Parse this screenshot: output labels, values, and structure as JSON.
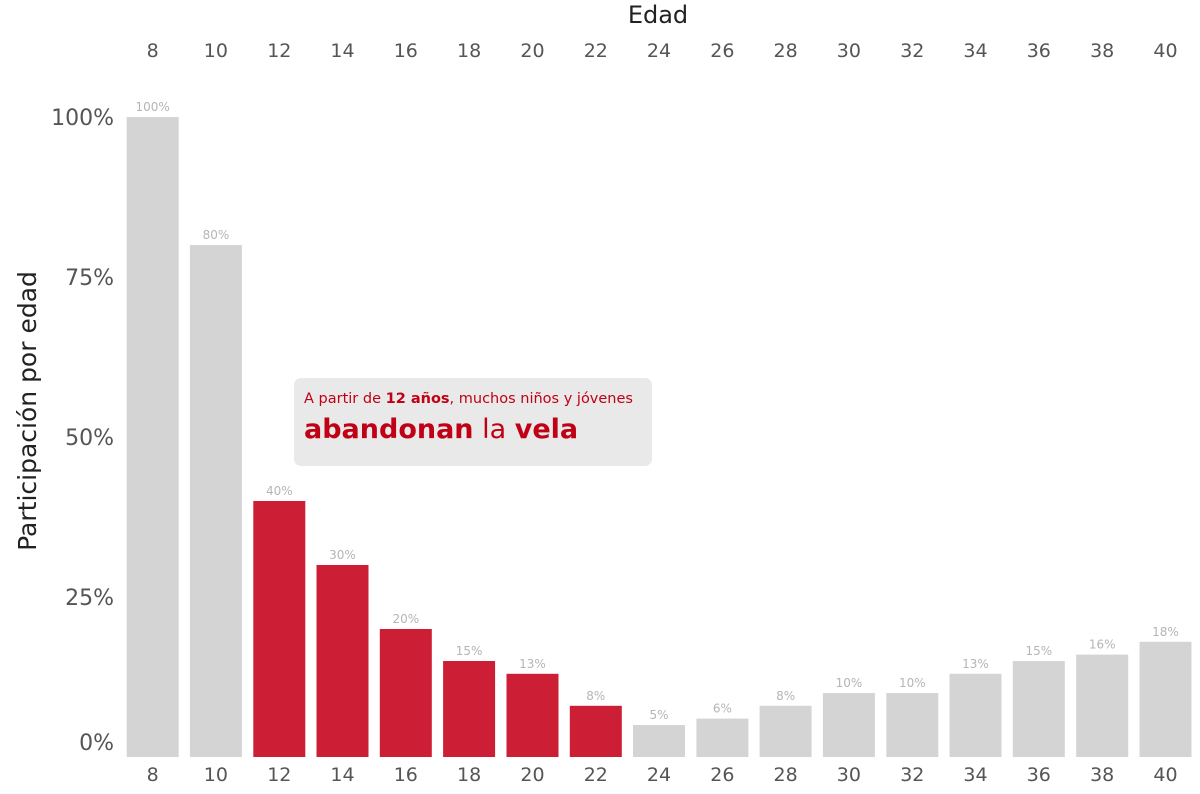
{
  "chart_data": {
    "type": "bar",
    "xlabel": "Edad",
    "ylabel": "Participación por edad",
    "ylim": [
      0,
      100
    ],
    "yticks": [
      "0%",
      "25%",
      "50%",
      "75%",
      "100%"
    ],
    "categories": [
      "8",
      "10",
      "12",
      "14",
      "16",
      "18",
      "20",
      "22",
      "24",
      "26",
      "28",
      "30",
      "32",
      "34",
      "36",
      "38",
      "40"
    ],
    "values": [
      100,
      80,
      40,
      30,
      20,
      15,
      13,
      8,
      5,
      6,
      8,
      10,
      10,
      13,
      15,
      16,
      18
    ],
    "data_labels": [
      "100%",
      "80%",
      "40%",
      "30%",
      "20%",
      "15%",
      "13%",
      "8%",
      "5%",
      "6%",
      "8%",
      "10%",
      "10%",
      "13%",
      "15%",
      "16%",
      "18%"
    ],
    "highlight_categories": [
      "12",
      "14",
      "16",
      "18",
      "20",
      "22"
    ],
    "colors": {
      "default": "#d4d4d4",
      "highlight": "#cc1f35",
      "annotation_text": "#c00015"
    },
    "annotation": {
      "line1_pre": "A partir de ",
      "line1_bold": "12 años",
      "line1_post": ", muchos niños y jóvenes",
      "line2_word1": "abandonan",
      "line2_word2": " la ",
      "line2_word3": "vela"
    }
  }
}
